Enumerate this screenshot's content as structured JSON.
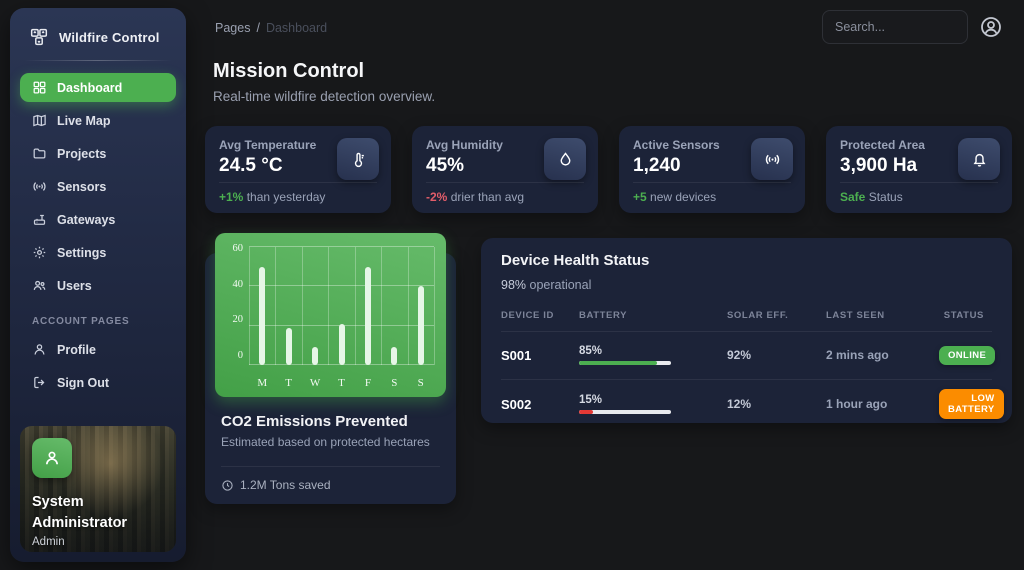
{
  "app": {
    "title": "Wildfire Control"
  },
  "topbar": {
    "breadcrumb": {
      "section": "Pages",
      "separator": "/",
      "current": "Dashboard"
    },
    "search_placeholder": "Search..."
  },
  "page": {
    "title": "Mission Control",
    "subtitle": "Real-time wildfire detection overview."
  },
  "sidebar": {
    "items": [
      {
        "label": "Dashboard",
        "icon": "dashboard-icon",
        "active": true
      },
      {
        "label": "Live Map",
        "icon": "map-icon"
      },
      {
        "label": "Projects",
        "icon": "folder-icon"
      },
      {
        "label": "Sensors",
        "icon": "signal-icon"
      },
      {
        "label": "Gateways",
        "icon": "router-icon"
      },
      {
        "label": "Settings",
        "icon": "gear-icon"
      },
      {
        "label": "Users",
        "icon": "users-icon"
      }
    ],
    "section_label": "ACCOUNT PAGES",
    "account_items": [
      {
        "label": "Profile",
        "icon": "person-icon"
      },
      {
        "label": "Sign Out",
        "icon": "sign-out-icon"
      }
    ],
    "user": {
      "name_line1": "System",
      "name_line2": "Administrator",
      "role": "Admin"
    }
  },
  "stats": [
    {
      "label": "Avg Temperature",
      "value": "24.5 °C",
      "delta": "+1%",
      "delta_dir": "pos",
      "note": "than yesterday",
      "icon": "thermometer-icon"
    },
    {
      "label": "Avg Humidity",
      "value": "45%",
      "delta": "-2%",
      "delta_dir": "neg",
      "note": "drier than avg",
      "icon": "droplet-icon"
    },
    {
      "label": "Active Sensors",
      "value": "1,240",
      "delta": "+5",
      "delta_dir": "pos",
      "note": "new devices",
      "icon": "signal-icon"
    },
    {
      "label": "Protected Area",
      "value": "3,900 Ha",
      "delta": "Safe",
      "delta_dir": "pos",
      "note": "Status",
      "icon": "bell-icon"
    }
  ],
  "chart_card": {
    "title": "CO2 Emissions Prevented",
    "subtitle": "Estimated based on protected hectares",
    "footer": "1.2M Tons saved",
    "footer_icon": "clock-icon"
  },
  "chart_data": {
    "type": "bar",
    "categories": [
      "M",
      "T",
      "W",
      "T",
      "F",
      "S",
      "S"
    ],
    "values": [
      50,
      19,
      9,
      21,
      50,
      9,
      40
    ],
    "title": "CO2 Emissions Prevented",
    "xlabel": "",
    "ylabel": "",
    "ylim": [
      0,
      60
    ],
    "yticks": [
      0,
      20,
      40,
      60
    ],
    "grid": true,
    "legend": false,
    "bar_color": "#e6f6e7",
    "panel_gradient": [
      "#66BB6A",
      "#43A047"
    ]
  },
  "device_health": {
    "title": "Device Health Status",
    "operational_pct": "98%",
    "operational_text": " operational",
    "columns": [
      "DEVICE ID",
      "BATTERY",
      "SOLAR EFF.",
      "LAST SEEN",
      "STATUS"
    ],
    "rows": [
      {
        "id": "S001",
        "battery_label": "85%",
        "battery": 85,
        "bar_color": "#4CAF50",
        "solar": "92%",
        "last_seen": "2 mins ago",
        "status": "ONLINE",
        "status_color": "#4CAF50"
      },
      {
        "id": "S002",
        "battery_label": "15%",
        "battery": 15,
        "bar_color": "#e53935",
        "solar": "12%",
        "last_seen": "1 hour ago",
        "status": "LOW BATTERY",
        "status_color": "#fb8c00"
      }
    ]
  },
  "colors": {
    "accent_green": "#4CAF50",
    "warn_orange": "#fb8c00",
    "error_red": "#e53935",
    "card_bg": "#1c2338",
    "page_bg": "#17181a"
  }
}
